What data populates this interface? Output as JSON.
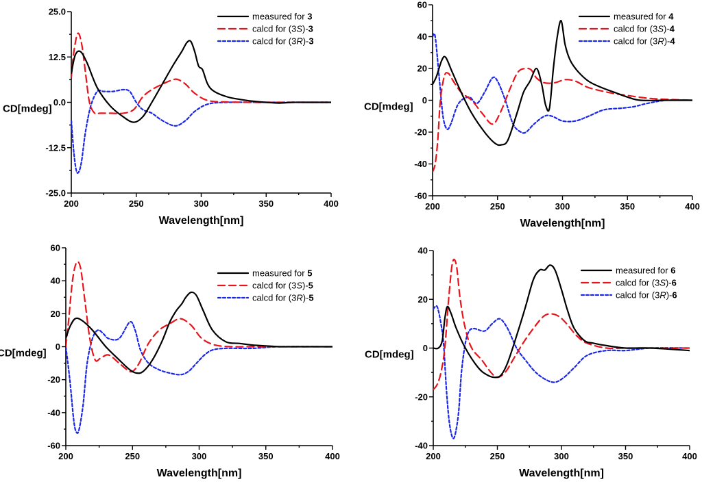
{
  "chart_data": [
    {
      "type": "line",
      "title": "",
      "xlabel": "Wavelength[nm]",
      "ylabel": "CD[mdeg]",
      "xlim": [
        200,
        400
      ],
      "ylim": [
        -25,
        25
      ],
      "xticks": [
        "200",
        "250",
        "300",
        "350",
        "400"
      ],
      "yticks": [
        "-25.0",
        "-12.5",
        "0.0",
        "12.5",
        "25.0"
      ],
      "legend_position": "top-right",
      "series": [
        {
          "name": "measured for 3",
          "legend": {
            "prefix": "measured for ",
            "italic": "",
            "mid": "",
            "compound": "3"
          },
          "color": "#000000",
          "dash": "solid",
          "x": [
            200,
            203,
            207,
            212,
            220,
            230,
            240,
            248,
            255,
            262,
            270,
            278,
            285,
            289,
            292,
            295,
            298,
            301,
            305,
            310,
            320,
            330,
            340,
            350,
            360,
            370,
            380,
            390,
            400
          ],
          "y": [
            8,
            13,
            14,
            11,
            4,
            -1,
            -4,
            -5.5,
            -4,
            0,
            5,
            10,
            14,
            16.5,
            16.8,
            14,
            10,
            9,
            5,
            3,
            1.5,
            0.8,
            0.3,
            0,
            -0.2,
            0,
            0,
            0,
            0
          ]
        },
        {
          "name": "calcd for (3S)-3",
          "legend": {
            "prefix": "calcd for (3",
            "italic": "S",
            "mid": ")-",
            "compound": "3"
          },
          "color": "#e8141c",
          "dash": "10,6",
          "x": [
            200,
            202,
            205,
            208,
            211,
            214,
            218,
            222,
            230,
            240,
            248,
            255,
            262,
            270,
            278,
            282,
            288,
            295,
            305,
            320,
            340,
            360,
            380,
            400
          ],
          "y": [
            7,
            14,
            19,
            16,
            8,
            0,
            -3,
            -3,
            -3,
            -3,
            -2,
            1.5,
            3.5,
            5,
            6.2,
            6.3,
            5,
            2.5,
            0.5,
            0.1,
            0,
            0,
            0,
            0
          ]
        },
        {
          "name": "calcd for (3R)-3",
          "legend": {
            "prefix": "calcd for (3",
            "italic": "R",
            "mid": ")-",
            "compound": "3"
          },
          "color": "#1a26e8",
          "dash": "4,3",
          "x": [
            200,
            202,
            204,
            206,
            208,
            211,
            215,
            220,
            225,
            232,
            240,
            245,
            250,
            255,
            262,
            270,
            280,
            288,
            295,
            305,
            320,
            350,
            400
          ],
          "y": [
            -5,
            -14,
            -19,
            -19,
            -16,
            -8,
            -1,
            3,
            3,
            3,
            3.5,
            3,
            0,
            -2,
            -3,
            -5,
            -6.5,
            -5,
            -2.5,
            -0.5,
            0,
            0,
            0
          ]
        }
      ]
    },
    {
      "type": "line",
      "title": "",
      "xlabel": "Wavelength[nm]",
      "ylabel": "CD[mdeg]",
      "xlim": [
        200,
        400
      ],
      "ylim": [
        -60,
        60
      ],
      "xticks": [
        "200",
        "250",
        "300",
        "350",
        "400"
      ],
      "yticks": [
        "-60",
        "-40",
        "-20",
        "0",
        "20",
        "40",
        "60"
      ],
      "legend_position": "top-right",
      "series": [
        {
          "name": "measured for 4",
          "legend": {
            "prefix": "measured for ",
            "italic": "",
            "mid": "",
            "compound": "4"
          },
          "color": "#000000",
          "dash": "solid",
          "x": [
            200,
            203,
            207,
            210,
            215,
            222,
            230,
            240,
            248,
            253,
            258,
            265,
            270,
            275,
            280,
            284,
            287,
            290,
            293,
            296,
            299,
            302,
            306,
            312,
            320,
            330,
            340,
            350,
            360,
            380,
            400
          ],
          "y": [
            10,
            15,
            25,
            27,
            18,
            5,
            -8,
            -20,
            -27,
            -28,
            -25,
            -8,
            5,
            12,
            20,
            10,
            -3,
            -5,
            20,
            40,
            50,
            35,
            25,
            18,
            12,
            8,
            5,
            2,
            0,
            0,
            0
          ]
        },
        {
          "name": "calcd for (3S)-4",
          "legend": {
            "prefix": "calcd for (3",
            "italic": "S",
            "mid": ")-",
            "compound": "4"
          },
          "color": "#e8141c",
          "dash": "10,6",
          "x": [
            200,
            202,
            204,
            206,
            209,
            212,
            216,
            222,
            230,
            238,
            246,
            252,
            260,
            266,
            272,
            276,
            280,
            286,
            294,
            302,
            310,
            320,
            335,
            350,
            370,
            400
          ],
          "y": [
            -45,
            -40,
            -25,
            0,
            15,
            17,
            12,
            5,
            0,
            -8,
            -15,
            -8,
            8,
            18,
            20,
            19,
            14,
            11,
            11,
            13,
            12,
            8,
            5,
            3,
            1,
            0
          ]
        },
        {
          "name": "calcd for (3R)-4",
          "legend": {
            "prefix": "calcd for (3",
            "italic": "R",
            "mid": ")-",
            "compound": "4"
          },
          "color": "#1a26e8",
          "dash": "4,3",
          "x": [
            200,
            202,
            205,
            208,
            211,
            214,
            220,
            228,
            234,
            240,
            246,
            250,
            256,
            262,
            268,
            272,
            278,
            286,
            292,
            300,
            310,
            320,
            332,
            345,
            355,
            365,
            380,
            400
          ],
          "y": [
            40,
            40,
            15,
            -10,
            -18,
            -15,
            -2,
            2,
            -2,
            5,
            14,
            12,
            0,
            -15,
            -20,
            -20,
            -15,
            -10,
            -10,
            -13,
            -13,
            -10,
            -6,
            -5,
            -4,
            -2,
            0,
            0
          ]
        }
      ]
    },
    {
      "type": "line",
      "title": "",
      "xlabel": "Wavelength[nm]",
      "ylabel": "CD[mdeg]",
      "xlim": [
        200,
        400
      ],
      "ylim": [
        -60,
        60
      ],
      "xticks": [
        "200",
        "250",
        "300",
        "350",
        "400"
      ],
      "yticks": [
        "-60",
        "-40",
        "-20",
        "0",
        "20",
        "40",
        "60"
      ],
      "legend_position": "top-right",
      "series": [
        {
          "name": "measured for 5",
          "legend": {
            "prefix": "measured for ",
            "italic": "",
            "mid": "",
            "compound": "5"
          },
          "color": "#000000",
          "dash": "solid",
          "x": [
            200,
            203,
            207,
            212,
            220,
            230,
            240,
            248,
            253,
            258,
            265,
            272,
            278,
            283,
            287,
            290,
            294,
            298,
            303,
            310,
            320,
            330,
            340,
            350,
            360,
            370,
            385,
            400
          ],
          "y": [
            5,
            12,
            17,
            16,
            10,
            0,
            -8,
            -14,
            -16,
            -15,
            -8,
            3,
            15,
            22,
            26,
            30,
            33,
            31,
            22,
            10,
            3,
            2,
            1,
            0.5,
            0,
            0,
            0,
            0
          ]
        },
        {
          "name": "calcd for (3S)-5",
          "legend": {
            "prefix": "calcd for (3",
            "italic": "S",
            "mid": ")-",
            "compound": "5"
          },
          "color": "#e8141c",
          "dash": "10,6",
          "x": [
            200,
            202,
            205,
            208,
            211,
            214,
            218,
            222,
            226,
            232,
            240,
            246,
            250,
            255,
            262,
            270,
            278,
            286,
            294,
            302,
            312,
            325,
            340,
            360,
            380,
            400
          ],
          "y": [
            0,
            15,
            40,
            51,
            48,
            30,
            5,
            -8,
            -7,
            -5,
            -10,
            -14,
            -15,
            -10,
            2,
            10,
            14,
            17,
            13,
            5,
            1,
            0,
            0,
            0,
            0,
            0
          ]
        },
        {
          "name": "calcd for (3R)-5",
          "legend": {
            "prefix": "calcd for (3",
            "italic": "R",
            "mid": ")-",
            "compound": "5"
          },
          "color": "#1a26e8",
          "dash": "4,3",
          "x": [
            200,
            203,
            206,
            208,
            210,
            213,
            216,
            220,
            224,
            228,
            232,
            240,
            248,
            252,
            256,
            262,
            270,
            278,
            286,
            292,
            298,
            304,
            310,
            320,
            340,
            360,
            400
          ],
          "y": [
            0,
            -20,
            -45,
            -52,
            -50,
            -35,
            -10,
            5,
            10,
            8,
            5,
            5,
            15,
            10,
            -2,
            -10,
            -14,
            -16,
            -17,
            -15,
            -10,
            -5,
            -2,
            -1,
            -1,
            0,
            0
          ]
        }
      ]
    },
    {
      "type": "line",
      "title": "",
      "xlabel": "Wavelength[nm]",
      "ylabel": "CD[mdeg]",
      "xlim": [
        200,
        400
      ],
      "ylim": [
        -40,
        40
      ],
      "xticks": [
        "200",
        "250",
        "300",
        "350",
        "400"
      ],
      "yticks": [
        "-40",
        "-20",
        "0",
        "20",
        "40"
      ],
      "legend_position": "top-right",
      "series": [
        {
          "name": "measured for 6",
          "legend": {
            "prefix": "measured for ",
            "italic": "",
            "mid": "",
            "compound": "6"
          },
          "color": "#000000",
          "dash": "solid",
          "x": [
            200,
            204,
            207,
            209,
            211,
            214,
            218,
            225,
            235,
            242,
            248,
            253,
            258,
            265,
            272,
            278,
            283,
            287,
            291,
            295,
            300,
            305,
            310,
            318,
            325,
            335,
            350,
            370,
            400
          ],
          "y": [
            0,
            0,
            3,
            12,
            17,
            14,
            8,
            0,
            -8,
            -11,
            -12,
            -11,
            -6,
            5,
            17,
            28,
            32,
            32,
            34,
            32,
            24,
            15,
            8,
            3,
            2,
            1,
            0,
            0,
            -1
          ]
        },
        {
          "name": "calcd for (3S)-6",
          "legend": {
            "prefix": "calcd for (3",
            "italic": "S",
            "mid": ")-",
            "compound": "6"
          },
          "color": "#e8141c",
          "dash": "10,6",
          "x": [
            200,
            203,
            206,
            209,
            212,
            215,
            218,
            221,
            225,
            230,
            238,
            245,
            250,
            256,
            262,
            270,
            278,
            286,
            292,
            298,
            304,
            312,
            320,
            335,
            350,
            370,
            400
          ],
          "y": [
            -17,
            -15,
            -10,
            0,
            20,
            35,
            34,
            20,
            8,
            0,
            -5,
            -10,
            -12,
            -10,
            -5,
            2,
            8,
            13,
            14,
            13,
            10,
            5,
            2,
            0,
            0,
            0,
            0
          ]
        },
        {
          "name": "calcd for (3R)-6",
          "legend": {
            "prefix": "calcd for (3",
            "italic": "R",
            "mid": ")-",
            "compound": "6"
          },
          "color": "#1a26e8",
          "dash": "4,3",
          "x": [
            200,
            203,
            206,
            208,
            210,
            212,
            214,
            216,
            218,
            220,
            222,
            225,
            228,
            232,
            240,
            246,
            252,
            258,
            265,
            272,
            280,
            288,
            295,
            302,
            310,
            320,
            335,
            350,
            370,
            400
          ],
          "y": [
            16,
            17,
            10,
            2,
            -15,
            -28,
            -35,
            -37,
            -33,
            -25,
            -10,
            2,
            7,
            8,
            7,
            10,
            12,
            8,
            0,
            -5,
            -10,
            -13,
            -14,
            -12,
            -8,
            -3,
            -1,
            -1,
            0,
            0
          ]
        }
      ]
    }
  ]
}
